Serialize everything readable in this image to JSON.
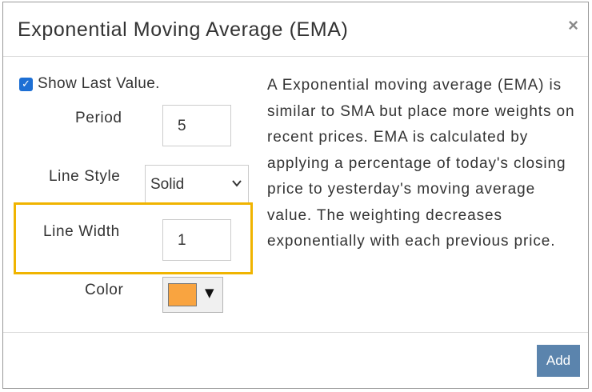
{
  "dialog": {
    "title": "Exponential Moving Average (EMA)",
    "close_glyph": "×"
  },
  "form": {
    "show_last_value": {
      "label": "Show Last Value.",
      "checked": true
    },
    "period": {
      "label": "Period",
      "value": "5"
    },
    "line_style": {
      "label": "Line Style",
      "value": "Solid"
    },
    "line_width": {
      "label": "Line Width",
      "value": "1",
      "highlighted": true
    },
    "color": {
      "label": "Color",
      "value": "#f9a440",
      "arrow": "▼"
    }
  },
  "description": "A Exponential moving average (EMA) is similar to SMA but place more weights on recent prices. EMA is calculated by applying a percentage of today's closing price to yesterday's moving average value. The weighting decreases exponentially with each previous price.",
  "footer": {
    "add_label": "Add"
  },
  "colors": {
    "highlight_border": "#f0b400",
    "add_button": "#5b84ad",
    "checkbox": "#1d6fd4"
  }
}
